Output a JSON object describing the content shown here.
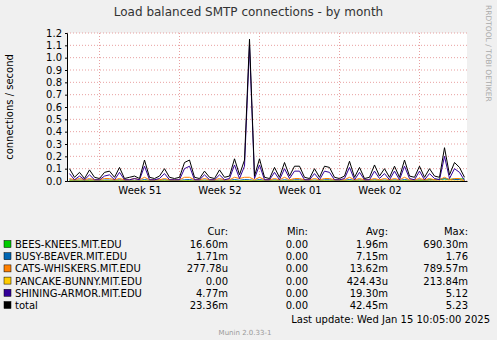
{
  "chart_data": {
    "type": "line",
    "title": "Load balanced SMTP connections - by month",
    "ylabel": "connections / second",
    "watermark": "RRDTOOL / TOBI OETIKER",
    "last_update": "Last update: Wed Jan 15 10:05:00 2025",
    "footer": "Munin 2.0.33-1",
    "grid": true,
    "legend": "bottom",
    "ylim": [
      0,
      1.2
    ],
    "yticks": [
      {
        "value": 0,
        "label": "0.0"
      },
      0.1,
      0.2,
      0.3,
      0.4,
      0.5,
      0.6,
      0.7,
      0.8,
      0.9,
      {
        "value": 1,
        "label": "1.0"
      },
      1.1,
      1.2
    ],
    "categories": [
      null,
      null,
      null,
      null,
      null,
      null,
      null,
      null,
      null,
      null,
      null,
      null,
      null,
      null,
      "Week 51",
      null,
      null,
      null,
      null,
      null,
      null,
      null,
      null,
      null,
      null,
      null,
      null,
      null,
      null,
      null,
      "Week 52",
      null,
      null,
      null,
      null,
      null,
      null,
      null,
      null,
      null,
      null,
      null,
      null,
      null,
      null,
      null,
      "Week 01",
      null,
      null,
      null,
      null,
      null,
      null,
      null,
      null,
      null,
      null,
      null,
      null,
      null,
      null,
      null,
      "Week 02",
      null,
      null,
      null,
      null,
      null,
      null,
      null,
      null,
      null,
      null,
      null,
      null,
      null,
      null,
      null,
      null,
      null
    ],
    "stat_headers": [
      "Cur:",
      "Min:",
      "Avg:",
      "Max:"
    ],
    "series": [
      {
        "name": "BEES-KNEES.MIT.EDU",
        "color": "#00cc00",
        "stats": [
          "16.60m",
          "0.00",
          "1.96m",
          "690.30m"
        ],
        "values": [
          0.002,
          0.001,
          0.002,
          0.001,
          0.003,
          0.001,
          0.001,
          0.002,
          0.002,
          0.001,
          0.002,
          0.001,
          0.002,
          0.001,
          0.003,
          0.001,
          0.001,
          0.002,
          0.002,
          0.001,
          0.002,
          0.001,
          0.002,
          0.001,
          0.003,
          0.001,
          0.001,
          0.002,
          0.002,
          0.001,
          0.002,
          0.001,
          0.002,
          0.001,
          0.003,
          0.001,
          0.001,
          0.002,
          0.002,
          0.001,
          0.002,
          0.001,
          0.002,
          0.001,
          0.003,
          0.001,
          0.001,
          0.002,
          0.002,
          0.001,
          0.002,
          0.001,
          0.002,
          0.001,
          0.003,
          0.001,
          0.001,
          0.002,
          0.002,
          0.001,
          0.002,
          0.001,
          0.002,
          0.001,
          0.003,
          0.001,
          0.001,
          0.002,
          0.002,
          0.001,
          0.004,
          0.006,
          0.01,
          0.012,
          0.015,
          0.016,
          0.014,
          0.016,
          0.017,
          0.017
        ]
      },
      {
        "name": "BUSY-BEAVER.MIT.EDU",
        "color": "#0066b3",
        "stats": [
          "1.71m",
          "0.00",
          "7.15m",
          "1.76"
        ],
        "values": [
          0.01,
          0.005,
          0.008,
          0.004,
          0.01,
          0.005,
          0.004,
          0.008,
          0.008,
          0.005,
          0.01,
          0.004,
          0.005,
          0.006,
          0.004,
          0.012,
          0.005,
          0.004,
          0.006,
          0.01,
          0.005,
          0.004,
          0.005,
          0.01,
          0.012,
          0.005,
          0.004,
          0.008,
          0.005,
          0.004,
          0.008,
          0.005,
          0.006,
          0.012,
          0.006,
          0.012,
          0.01,
          0.005,
          0.012,
          0.005,
          0.004,
          0.01,
          0.005,
          0.01,
          0.006,
          0.01,
          0.01,
          0.005,
          0.004,
          0.008,
          0.005,
          0.01,
          0.01,
          0.005,
          0.004,
          0.006,
          0.012,
          0.005,
          0.01,
          0.004,
          0.005,
          0.01,
          0.006,
          0.008,
          0.005,
          0.01,
          0.005,
          0.012,
          0.006,
          0.005,
          0.01,
          0.005,
          0.008,
          0.008,
          0.01,
          0.02,
          0.012,
          0.012,
          0.012,
          0.002
        ]
      },
      {
        "name": "CATS-WHISKERS.MIT.EDU",
        "color": "#ff8000",
        "stats": [
          "277.78u",
          "0.00",
          "13.62m",
          "789.57m"
        ],
        "values": [
          0.02,
          0.01,
          0.02,
          0.01,
          0.02,
          0.01,
          0.01,
          0.02,
          0.02,
          0.01,
          0.02,
          0.01,
          0.01,
          0.02,
          0.01,
          0.03,
          0.01,
          0.01,
          0.01,
          0.02,
          0.01,
          0.01,
          0.01,
          0.03,
          0.03,
          0.01,
          0.01,
          0.02,
          0.01,
          0.01,
          0.02,
          0.01,
          0.01,
          0.03,
          0.02,
          0.03,
          0.03,
          0.01,
          0.03,
          0.01,
          0.01,
          0.02,
          0.01,
          0.03,
          0.01,
          0.02,
          0.02,
          0.01,
          0.01,
          0.02,
          0.01,
          0.02,
          0.02,
          0.01,
          0.01,
          0.01,
          0.03,
          0.01,
          0.02,
          0.01,
          0.01,
          0.02,
          0.01,
          0.02,
          0.01,
          0.02,
          0.01,
          0.03,
          0.01,
          0.01,
          0.02,
          0.01,
          0.02,
          0.01,
          0.01,
          0.03,
          0.01,
          0.02,
          0.02,
          0.0003
        ]
      },
      {
        "name": "PANCAKE-BUNNY.MIT.EDU",
        "color": "#ffcc00",
        "stats": [
          "0.00",
          "0.00",
          "424.43u",
          "213.84m"
        ],
        "values": [
          0,
          0,
          0,
          0,
          0,
          0,
          0,
          0,
          0,
          0,
          0,
          0,
          0,
          0,
          0,
          0.001,
          0,
          0,
          0,
          0,
          0,
          0,
          0,
          0,
          0,
          0,
          0,
          0,
          0,
          0,
          0,
          0,
          0,
          0,
          0,
          0,
          0.001,
          0,
          0,
          0,
          0,
          0,
          0,
          0,
          0,
          0,
          0,
          0,
          0,
          0,
          0,
          0,
          0,
          0,
          0,
          0,
          0,
          0,
          0,
          0,
          0,
          0,
          0,
          0,
          0,
          0,
          0,
          0,
          0,
          0,
          0,
          0,
          0,
          0,
          0,
          0.001,
          0,
          0,
          0,
          0
        ]
      },
      {
        "name": "SHINING-ARMOR.MIT.EDU",
        "color": "#330099",
        "stats": [
          "4.77m",
          "0.00",
          "19.30m",
          "5.12"
        ],
        "values": [
          0.06,
          0.01,
          0.04,
          0.01,
          0.05,
          0.01,
          0.01,
          0.04,
          0.05,
          0.01,
          0.07,
          0.01,
          0.01,
          0.02,
          0.01,
          0.12,
          0.01,
          0.01,
          0.02,
          0.06,
          0.01,
          0.01,
          0.01,
          0.1,
          0.12,
          0.01,
          0.01,
          0.05,
          0.01,
          0.01,
          0.05,
          0.01,
          0.02,
          0.13,
          0.02,
          0.12,
          1.1,
          0.02,
          0.13,
          0.01,
          0.01,
          0.07,
          0.01,
          0.1,
          0.02,
          0.08,
          0.08,
          0.01,
          0.01,
          0.06,
          0.01,
          0.08,
          0.07,
          0.01,
          0.01,
          0.02,
          0.11,
          0.01,
          0.07,
          0.01,
          0.01,
          0.08,
          0.02,
          0.06,
          0.01,
          0.08,
          0.01,
          0.12,
          0.02,
          0.01,
          0.08,
          0.01,
          0.06,
          0.02,
          0.01,
          0.2,
          0.02,
          0.1,
          0.07,
          0.005
        ]
      },
      {
        "name": "total",
        "color": "#000000",
        "stats": [
          "23.36m",
          "0.00",
          "42.45m",
          "5.23"
        ],
        "values": [
          0.1,
          0.03,
          0.07,
          0.02,
          0.09,
          0.03,
          0.02,
          0.07,
          0.08,
          0.03,
          0.11,
          0.02,
          0.03,
          0.04,
          0.02,
          0.17,
          0.03,
          0.02,
          0.04,
          0.1,
          0.03,
          0.02,
          0.03,
          0.15,
          0.17,
          0.03,
          0.02,
          0.08,
          0.03,
          0.02,
          0.09,
          0.03,
          0.04,
          0.18,
          0.05,
          0.17,
          1.15,
          0.04,
          0.18,
          0.03,
          0.02,
          0.11,
          0.03,
          0.15,
          0.04,
          0.12,
          0.12,
          0.03,
          0.02,
          0.1,
          0.03,
          0.12,
          0.11,
          0.03,
          0.02,
          0.04,
          0.16,
          0.03,
          0.11,
          0.02,
          0.03,
          0.13,
          0.04,
          0.1,
          0.03,
          0.12,
          0.03,
          0.17,
          0.04,
          0.03,
          0.12,
          0.03,
          0.1,
          0.04,
          0.03,
          0.27,
          0.05,
          0.15,
          0.11,
          0.03
        ]
      }
    ]
  }
}
